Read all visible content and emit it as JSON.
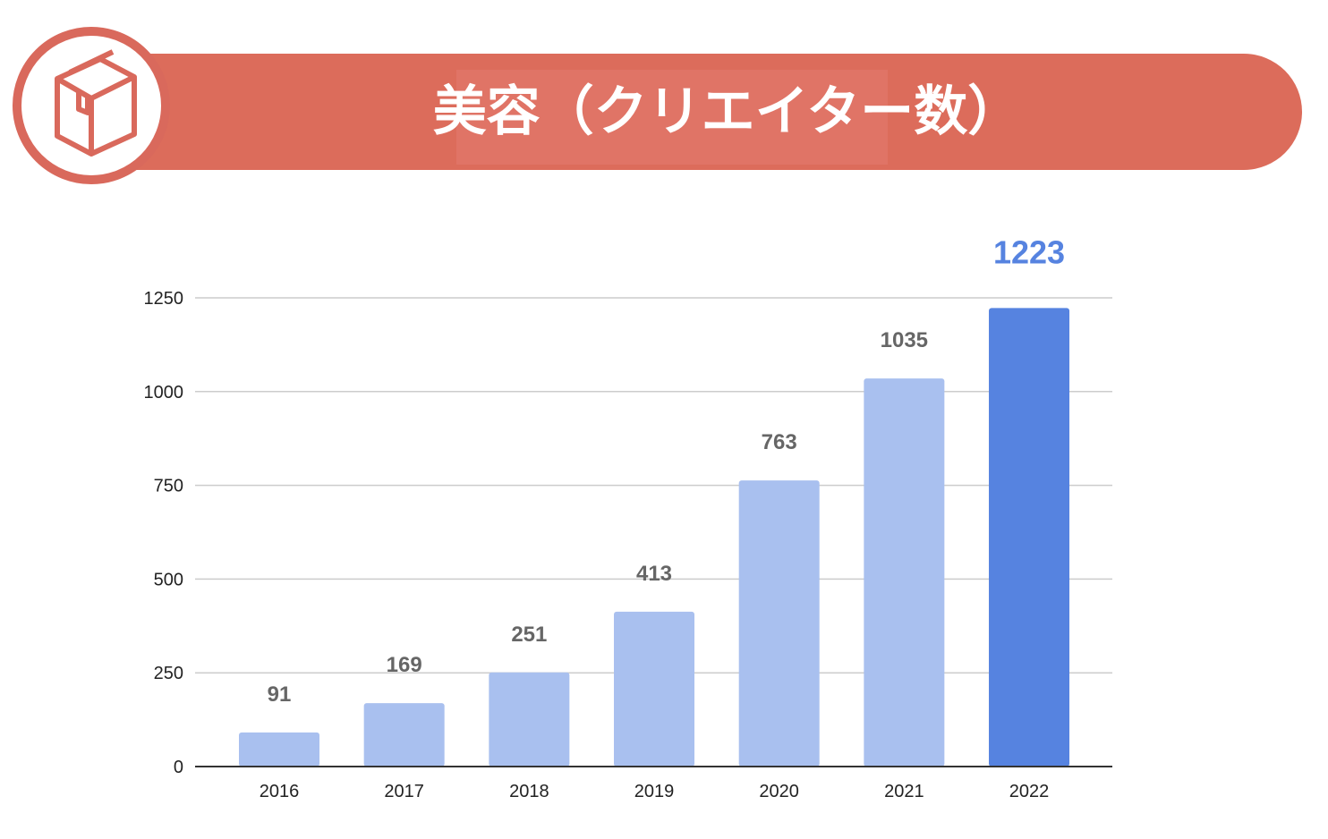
{
  "header": {
    "title": "美容（クリエイター数）",
    "icon": "package-box-icon"
  },
  "colors": {
    "banner": "#DC6C5B",
    "bar": "#A9C0EF",
    "bar_highlight": "#5683E0",
    "label": "#666666"
  },
  "chart_data": {
    "type": "bar",
    "title": "美容（クリエイター数）",
    "categories": [
      "2016",
      "2017",
      "2018",
      "2019",
      "2020",
      "2021",
      "2022"
    ],
    "values": [
      91,
      169,
      251,
      413,
      763,
      1035,
      1223
    ],
    "highlight_index": 6,
    "ylim": [
      0,
      1250
    ],
    "yticks": [
      0,
      250,
      500,
      750,
      1000,
      1250
    ],
    "xlabel": "",
    "ylabel": "",
    "grid": true,
    "legend": "none"
  }
}
